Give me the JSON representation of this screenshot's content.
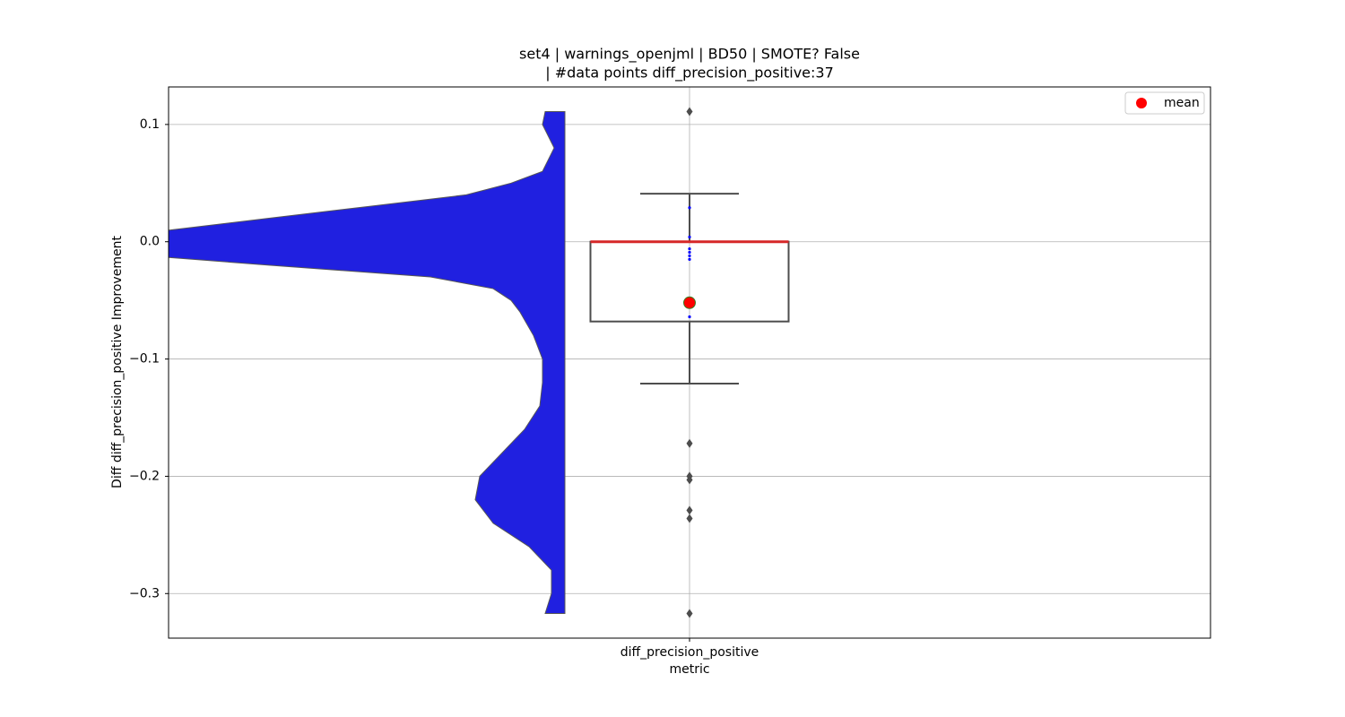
{
  "chart_data": {
    "type": "box",
    "title": [
      "set4 | warnings_openjml | BD50 | SMOTE? False",
      "| #data points diff_precision_positive:37"
    ],
    "xlabel": "metric",
    "ylabel": "Diff diff_precision_positive Improvement",
    "categories": [
      "diff_precision_positive"
    ],
    "ylim": [
      -0.338,
      0.132
    ],
    "yticks": [
      {
        "value": -0.3,
        "label": "−0.3"
      },
      {
        "value": -0.2,
        "label": "−0.2"
      },
      {
        "value": -0.1,
        "label": "−0.1"
      },
      {
        "value": 0,
        "label": "0.0"
      },
      0.1
    ],
    "grid": true,
    "box": {
      "q1": -0.068,
      "median": 0,
      "q3": 0,
      "whisker_low": -0.121,
      "whisker_high": 0.041,
      "mean": -0.052,
      "outliers": [
        0.111,
        -0.172,
        -0.2,
        -0.203,
        -0.229,
        -0.236,
        -0.317
      ],
      "color": "#4d4d4d",
      "median_color": "#d62728",
      "mean_color": "#ff0000"
    },
    "points": {
      "values": [
        0.029,
        0.004,
        -0.006,
        -0.009,
        -0.012,
        -0.015,
        -0.064
      ],
      "color": "#0000ff"
    },
    "violin": {
      "color": "#2020e0",
      "y": [
        0.111,
        0.1,
        0.08,
        0.06,
        0.05,
        0.04,
        0.03,
        0.02,
        0.01,
        0,
        -0.01,
        -0.02,
        -0.03,
        -0.04,
        -0.05,
        -0.06,
        -0.08,
        -0.1,
        -0.12,
        -0.14,
        -0.16,
        -0.18,
        -0.2,
        -0.22,
        -0.24,
        -0.26,
        -0.28,
        -0.3,
        -0.317
      ],
      "density": [
        0.22,
        0.25,
        0.12,
        0.25,
        0.6,
        1.1,
        2.2,
        3.3,
        4.4,
        6,
        5,
        3.3,
        1.5,
        0.8,
        0.6,
        0.5,
        0.35,
        0.25,
        0.25,
        0.28,
        0.45,
        0.7,
        0.95,
        1,
        0.8,
        0.4,
        0.15,
        0.15,
        0.22
      ]
    },
    "legend": {
      "loc": "upper right",
      "entries": [
        {
          "name": "mean",
          "color": "#ff0000"
        }
      ]
    }
  }
}
